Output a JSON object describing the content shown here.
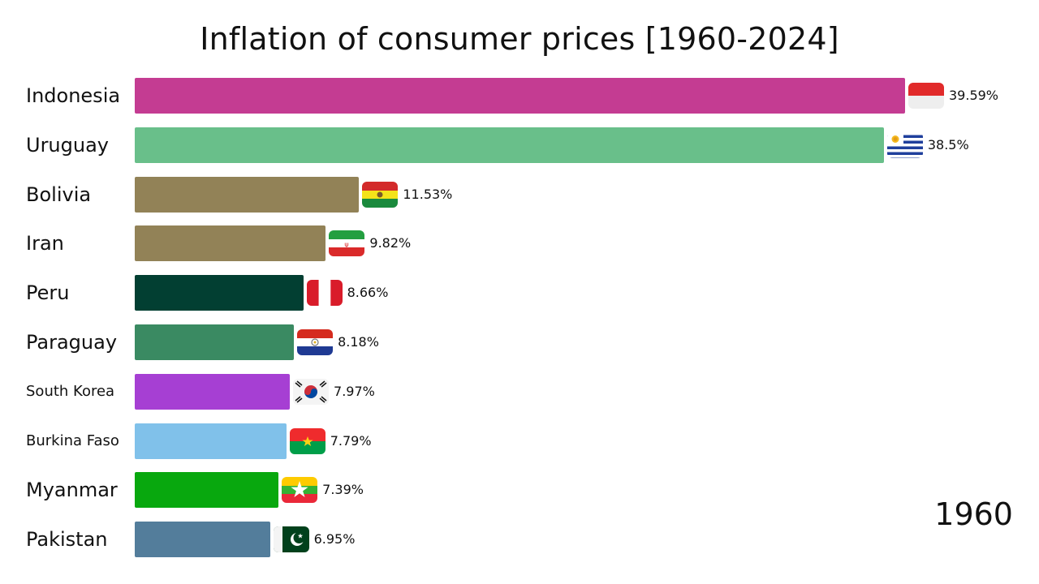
{
  "chart_data": {
    "type": "bar",
    "title": "Inflation of consumer prices [1960-2024]",
    "year": "1960",
    "orientation": "horizontal",
    "series": [
      {
        "category": "Indonesia",
        "value": 39.59,
        "label": "39.59%",
        "color": "#c43c92",
        "flag": "indonesia-flag-icon"
      },
      {
        "category": "Uruguay",
        "value": 38.5,
        "label": "38.5%",
        "color": "#69bf8a",
        "flag": "uruguay-flag-icon"
      },
      {
        "category": "Bolivia",
        "value": 11.53,
        "label": "11.53%",
        "color": "#928257",
        "flag": "bolivia-flag-icon"
      },
      {
        "category": "Iran",
        "value": 9.82,
        "label": "9.82%",
        "color": "#928257",
        "flag": "iran-flag-icon"
      },
      {
        "category": "Peru",
        "value": 8.66,
        "label": "8.66%",
        "color": "#023f32",
        "flag": "peru-flag-icon"
      },
      {
        "category": "Paraguay",
        "value": 8.18,
        "label": "8.18%",
        "color": "#3a8a62",
        "flag": "paraguay-flag-icon"
      },
      {
        "category": "South Korea",
        "value": 7.97,
        "label": "7.97%",
        "color": "#a63fd3",
        "flag": "south-korea-flag-icon"
      },
      {
        "category": "Burkina Faso",
        "value": 7.79,
        "label": "7.79%",
        "color": "#80c1ea",
        "flag": "burkina-faso-flag-icon"
      },
      {
        "category": "Myanmar",
        "value": 7.39,
        "label": "7.39%",
        "color": "#08a80e",
        "flag": "myanmar-flag-icon"
      },
      {
        "category": "Pakistan",
        "value": 6.95,
        "label": "6.95%",
        "color": "#537d9b",
        "flag": "pakistan-flag-icon"
      }
    ],
    "xlim": [
      0,
      40
    ],
    "grid": false,
    "legend": "none"
  }
}
